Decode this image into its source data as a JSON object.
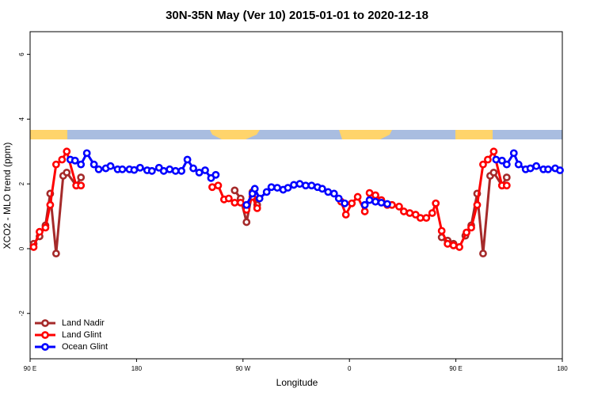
{
  "chart_data": {
    "type": "line",
    "title": "30N-35N May (Ver 10)   2015-01-01 to 2020-12-18",
    "xlabel": "Longitude",
    "ylabel": "XCO2 - MLO trend (ppm)",
    "xlim": [
      90,
      540
    ],
    "ylim": [
      -3.4,
      6.7
    ],
    "xticks": [
      {
        "value": 90,
        "label": "90 E"
      },
      180,
      {
        "value": 270,
        "label": "90 W"
      },
      {
        "value": 360,
        "label": "0"
      },
      {
        "value": 450,
        "label": "90 E"
      },
      {
        "value": 540,
        "label": "180"
      }
    ],
    "yticks": [
      -2,
      0,
      2,
      4,
      6
    ],
    "legend": "bottom-left",
    "series": [
      {
        "name": "Land Nadir",
        "color": "#a52a2a",
        "x": [
          93,
          98,
          103,
          107,
          112,
          118,
          121,
          129,
          133,
          null,
          263,
          268,
          273,
          278,
          282,
          null,
          438,
          443,
          448,
          null,
          458,
          463,
          468,
          473,
          479,
          482,
          489,
          493
        ],
        "values": [
          0.15,
          0.38,
          0.72,
          1.7,
          -0.15,
          2.25,
          2.35,
          1.95,
          2.2,
          null,
          1.8,
          1.55,
          0.82,
          1.75,
          1.35,
          null,
          0.35,
          0.25,
          0.15,
          null,
          0.4,
          0.72,
          1.7,
          -0.15,
          2.25,
          2.35,
          1.95,
          2.2
        ]
      },
      {
        "name": "Land Glint",
        "color": "#ff0000",
        "x": [
          93,
          98,
          103,
          107,
          112,
          117,
          121,
          129,
          133,
          null,
          244,
          249,
          254,
          258,
          263,
          268,
          273,
          278,
          282,
          null,
          353,
          357,
          362,
          367,
          373,
          377,
          382,
          387,
          392,
          396,
          402,
          406,
          411,
          416,
          420,
          425,
          430,
          433,
          438,
          443,
          448,
          453,
          459,
          463,
          468,
          473,
          477,
          482,
          489,
          493
        ],
        "values": [
          0.05,
          0.52,
          0.65,
          1.35,
          2.6,
          2.75,
          3.0,
          1.95,
          1.95,
          null,
          1.9,
          1.95,
          1.52,
          1.55,
          1.42,
          1.42,
          1.2,
          1.6,
          1.25,
          null,
          1.45,
          1.05,
          1.4,
          1.6,
          1.15,
          1.72,
          1.65,
          1.5,
          1.35,
          1.35,
          1.3,
          1.15,
          1.1,
          1.05,
          0.95,
          0.95,
          1.1,
          1.4,
          0.55,
          0.15,
          0.1,
          0.05,
          0.5,
          0.65,
          1.35,
          2.6,
          2.75,
          3.0,
          1.95,
          1.95
        ]
      },
      {
        "name": "Ocean Glint",
        "color": "#0000ff",
        "x": [
          124,
          128,
          133,
          138,
          144,
          148,
          154,
          158,
          164,
          168,
          174,
          178,
          183,
          189,
          193,
          199,
          203,
          208,
          213,
          218,
          223,
          228,
          233,
          238,
          243,
          247,
          null,
          273,
          278,
          280,
          284,
          290,
          294,
          299,
          304,
          308,
          313,
          318,
          323,
          328,
          333,
          337,
          342,
          347,
          351,
          356,
          null,
          373,
          377,
          382,
          387,
          392,
          null,
          484,
          489,
          493,
          499,
          503,
          509,
          513,
          518,
          524,
          528,
          534,
          538
        ],
        "values": [
          2.75,
          2.72,
          2.6,
          2.95,
          2.6,
          2.45,
          2.48,
          2.55,
          2.45,
          2.45,
          2.45,
          2.43,
          2.5,
          2.42,
          2.4,
          2.5,
          2.4,
          2.45,
          2.4,
          2.4,
          2.75,
          2.48,
          2.35,
          2.42,
          2.18,
          2.28,
          null,
          1.35,
          1.7,
          1.85,
          1.55,
          1.75,
          1.9,
          1.88,
          1.82,
          1.88,
          1.97,
          2.0,
          1.95,
          1.95,
          1.9,
          1.85,
          1.75,
          1.7,
          1.55,
          1.4,
          null,
          1.35,
          1.5,
          1.45,
          1.42,
          1.38,
          null,
          2.75,
          2.72,
          2.6,
          2.95,
          2.6,
          2.45,
          2.48,
          2.55,
          2.45,
          2.45,
          2.48,
          2.42
        ]
      }
    ]
  }
}
